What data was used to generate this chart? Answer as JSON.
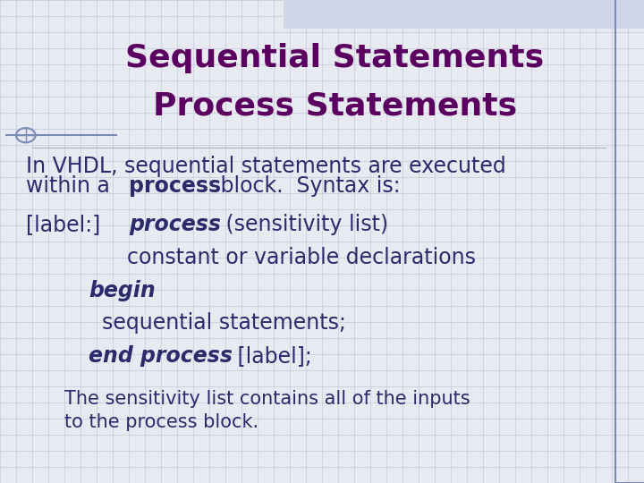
{
  "title_line1": "Sequential Statements",
  "title_line2": "Process Statements",
  "title_color": "#5B0060",
  "title_fontsize": 26,
  "body_color": "#2B2B6B",
  "body_fontsize": 17,
  "code_fontsize": 17,
  "note_fontsize": 15,
  "bg_color": "#E8EAF2",
  "grid_color": "#C5CAD8",
  "line_color": "#7A8BB5",
  "note_line1": "The sensitivity list contains all of the inputs",
  "note_line2": "to the process block."
}
